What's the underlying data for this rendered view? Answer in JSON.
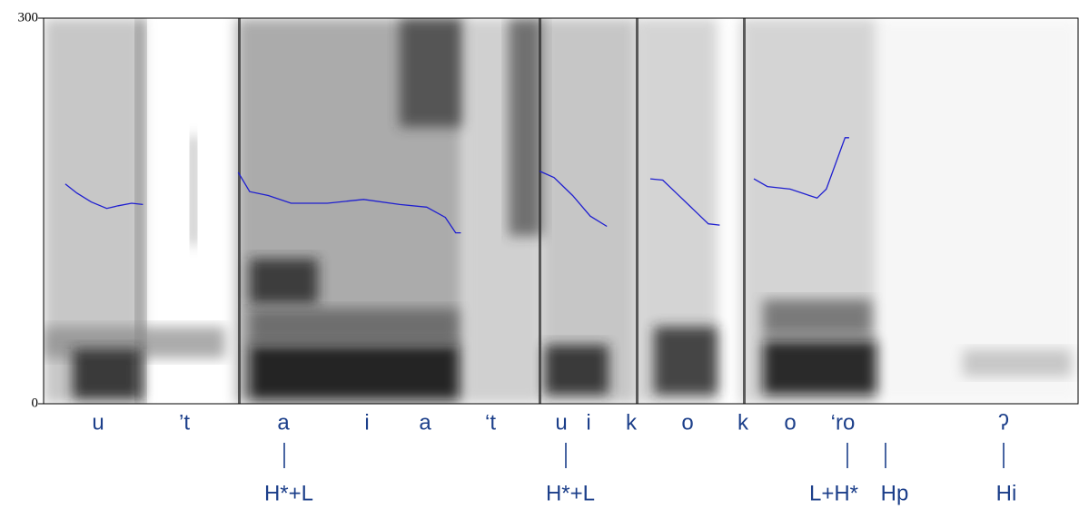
{
  "chart_data": {
    "type": "line",
    "ylim": [
      0,
      300
    ],
    "yticks": [
      0,
      300
    ],
    "xlim": [
      0,
      1
    ],
    "series": [
      {
        "color": "#1f1fd0",
        "x": [
          0.021,
          0.032,
          0.046,
          0.061,
          0.072,
          0.085,
          0.096
        ],
        "values": [
          171,
          164,
          157,
          152,
          154,
          156,
          155
        ]
      },
      {
        "color": "#1f1fd0",
        "x": [
          0.188,
          0.199,
          0.217,
          0.239,
          0.274,
          0.309,
          0.344,
          0.37,
          0.388,
          0.398,
          0.403
        ],
        "values": [
          180,
          165,
          162,
          156,
          156,
          159,
          155,
          153,
          145,
          133,
          133
        ]
      },
      {
        "color": "#1f1fd0",
        "x": [
          0.479,
          0.493,
          0.511,
          0.528,
          0.544
        ],
        "values": [
          181,
          176,
          162,
          146,
          138
        ]
      },
      {
        "color": "#1f1fd0",
        "x": [
          0.586,
          0.598,
          0.611,
          0.633,
          0.642,
          0.653
        ],
        "values": [
          175,
          174,
          164,
          147,
          140,
          139
        ]
      },
      {
        "color": "#1f1fd0",
        "x": [
          0.686,
          0.699,
          0.721,
          0.747,
          0.756,
          0.765,
          0.774,
          0.778
        ],
        "values": [
          175,
          169,
          167,
          160,
          167,
          187,
          207,
          207
        ]
      }
    ],
    "segments": [
      "u",
      "’t",
      "a",
      "i",
      "a",
      "‘t",
      "u",
      "i",
      "k",
      "o",
      "k",
      "o",
      "‘ro",
      "ʔ"
    ],
    "tones": [
      "H*+L",
      "H*+L",
      "L+H*",
      "Hp",
      "Hi"
    ]
  }
}
